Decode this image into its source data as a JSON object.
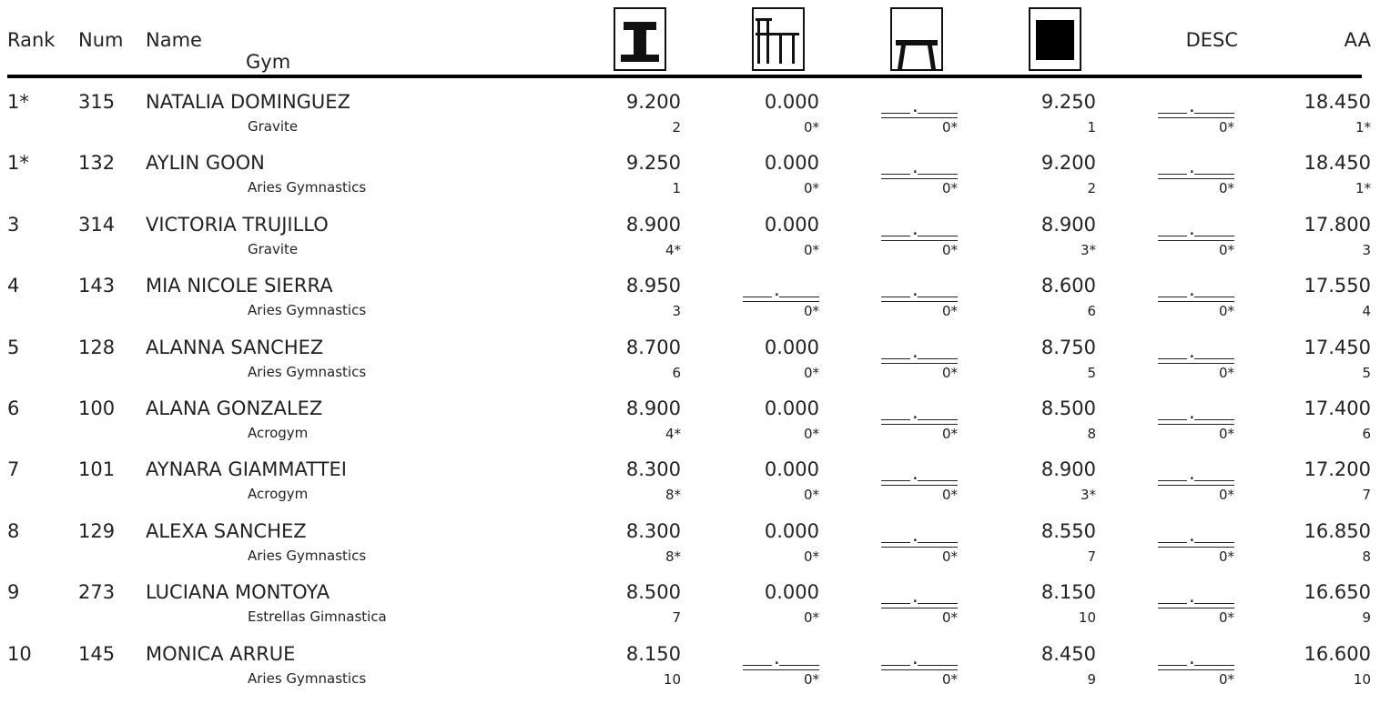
{
  "headers": {
    "rank": "Rank",
    "num": "Num",
    "name": "Name",
    "gym": "Gym",
    "desc": "DESC",
    "aa": "AA"
  },
  "event_icons": [
    "vault-icon",
    "uneven-bars-icon",
    "beam-icon",
    "floor-icon"
  ],
  "rows": [
    {
      "rank": "1*",
      "num": "315",
      "name": "NATALIA DOMINGUEZ",
      "gym": "Gravite",
      "vault": "9.200",
      "vault_rank": "2",
      "bars": "0.000",
      "bars_rank": "0*",
      "beam": "",
      "beam_rank": "0*",
      "floor": "9.250",
      "floor_rank": "1",
      "desc": "",
      "desc_rank": "0*",
      "aa": "18.450",
      "aa_rank": "1*"
    },
    {
      "rank": "1*",
      "num": "132",
      "name": "AYLIN GOON",
      "gym": "Aries Gymnastics",
      "vault": "9.250",
      "vault_rank": "1",
      "bars": "0.000",
      "bars_rank": "0*",
      "beam": "",
      "beam_rank": "0*",
      "floor": "9.200",
      "floor_rank": "2",
      "desc": "",
      "desc_rank": "0*",
      "aa": "18.450",
      "aa_rank": "1*"
    },
    {
      "rank": "3",
      "num": "314",
      "name": "VICTORIA TRUJILLO",
      "gym": "Gravite",
      "vault": "8.900",
      "vault_rank": "4*",
      "bars": "0.000",
      "bars_rank": "0*",
      "beam": "",
      "beam_rank": "0*",
      "floor": "8.900",
      "floor_rank": "3*",
      "desc": "",
      "desc_rank": "0*",
      "aa": "17.800",
      "aa_rank": "3"
    },
    {
      "rank": "4",
      "num": "143",
      "name": "MIA NICOLE SIERRA",
      "gym": "Aries Gymnastics",
      "vault": "8.950",
      "vault_rank": "3",
      "bars": "",
      "bars_rank": "0*",
      "beam": "",
      "beam_rank": "0*",
      "floor": "8.600",
      "floor_rank": "6",
      "desc": "",
      "desc_rank": "0*",
      "aa": "17.550",
      "aa_rank": "4"
    },
    {
      "rank": "5",
      "num": "128",
      "name": "ALANNA SANCHEZ",
      "gym": "Aries Gymnastics",
      "vault": "8.700",
      "vault_rank": "6",
      "bars": "0.000",
      "bars_rank": "0*",
      "beam": "",
      "beam_rank": "0*",
      "floor": "8.750",
      "floor_rank": "5",
      "desc": "",
      "desc_rank": "0*",
      "aa": "17.450",
      "aa_rank": "5"
    },
    {
      "rank": "6",
      "num": "100",
      "name": "ALANA GONZALEZ",
      "gym": "Acrogym",
      "vault": "8.900",
      "vault_rank": "4*",
      "bars": "0.000",
      "bars_rank": "0*",
      "beam": "",
      "beam_rank": "0*",
      "floor": "8.500",
      "floor_rank": "8",
      "desc": "",
      "desc_rank": "0*",
      "aa": "17.400",
      "aa_rank": "6"
    },
    {
      "rank": "7",
      "num": "101",
      "name": "AYNARA GIAMMATTEI",
      "gym": "Acrogym",
      "vault": "8.300",
      "vault_rank": "8*",
      "bars": "0.000",
      "bars_rank": "0*",
      "beam": "",
      "beam_rank": "0*",
      "floor": "8.900",
      "floor_rank": "3*",
      "desc": "",
      "desc_rank": "0*",
      "aa": "17.200",
      "aa_rank": "7"
    },
    {
      "rank": "8",
      "num": "129",
      "name": "ALEXA SANCHEZ",
      "gym": "Aries Gymnastics",
      "vault": "8.300",
      "vault_rank": "8*",
      "bars": "0.000",
      "bars_rank": "0*",
      "beam": "",
      "beam_rank": "0*",
      "floor": "8.550",
      "floor_rank": "7",
      "desc": "",
      "desc_rank": "0*",
      "aa": "16.850",
      "aa_rank": "8"
    },
    {
      "rank": "9",
      "num": "273",
      "name": "LUCIANA MONTOYA",
      "gym": "Estrellas Gimnastica",
      "vault": "8.500",
      "vault_rank": "7",
      "bars": "0.000",
      "bars_rank": "0*",
      "beam": "",
      "beam_rank": "0*",
      "floor": "8.150",
      "floor_rank": "10",
      "desc": "",
      "desc_rank": "0*",
      "aa": "16.650",
      "aa_rank": "9"
    },
    {
      "rank": "10",
      "num": "145",
      "name": "MONICA ARRUE",
      "gym": "Aries Gymnastics",
      "vault": "8.150",
      "vault_rank": "10",
      "bars": "",
      "bars_rank": "0*",
      "beam": "",
      "beam_rank": "0*",
      "floor": "8.450",
      "floor_rank": "9",
      "desc": "",
      "desc_rank": "0*",
      "aa": "16.600",
      "aa_rank": "10"
    }
  ]
}
